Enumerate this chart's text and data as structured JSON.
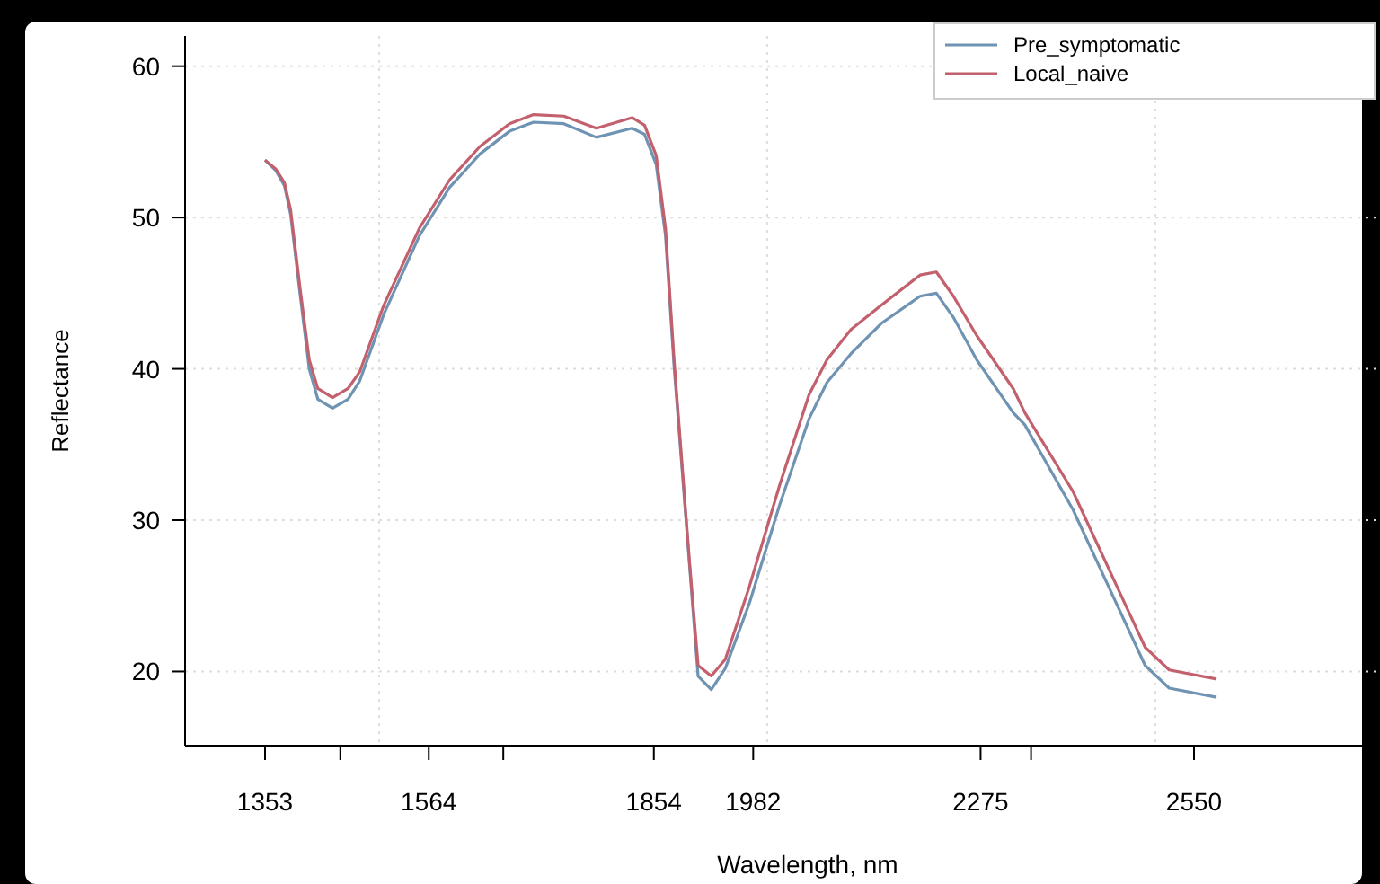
{
  "chart_data": {
    "type": "line",
    "xlabel": "Wavelength, nm",
    "ylabel": "Reflectance",
    "x": [
      1353,
      1367,
      1378,
      1386,
      1398,
      1410,
      1421,
      1440,
      1460,
      1475,
      1506,
      1552,
      1591,
      1630,
      1668,
      1699,
      1738,
      1780,
      1826,
      1842,
      1857,
      1869,
      1880,
      1900,
      1911,
      1928,
      1946,
      1977,
      2016,
      2054,
      2077,
      2108,
      2147,
      2197,
      2218,
      2240,
      2270,
      2317,
      2332,
      2394,
      2440,
      2487,
      2518,
      2579
    ],
    "series": [
      {
        "name": "Pre_symptomatic",
        "color": "#6f93b3",
        "values": [
          53.8,
          53.1,
          52.1,
          50.2,
          45.0,
          40.0,
          38.0,
          37.4,
          38.0,
          39.2,
          43.6,
          48.8,
          52.0,
          54.2,
          55.7,
          56.3,
          56.2,
          55.3,
          55.9,
          55.5,
          53.5,
          48.8,
          40.2,
          27.0,
          19.7,
          18.8,
          20.2,
          24.5,
          31.0,
          36.7,
          39.1,
          41.0,
          43.0,
          44.8,
          45.0,
          43.4,
          40.6,
          37.1,
          36.3,
          30.7,
          25.6,
          20.4,
          18.9,
          18.3
        ]
      },
      {
        "name": "Local_naive",
        "color": "#c2606e",
        "values": [
          53.8,
          53.2,
          52.3,
          50.5,
          45.4,
          40.6,
          38.7,
          38.1,
          38.7,
          39.8,
          44.2,
          49.3,
          52.5,
          54.7,
          56.2,
          56.8,
          56.7,
          55.9,
          56.6,
          56.1,
          54.1,
          49.3,
          40.6,
          27.2,
          20.4,
          19.7,
          20.8,
          25.6,
          32.3,
          38.3,
          40.6,
          42.6,
          44.2,
          46.2,
          46.4,
          44.8,
          42.2,
          38.7,
          37.1,
          31.9,
          26.8,
          21.6,
          20.1,
          19.5
        ]
      }
    ],
    "xlim": [
      1250,
      2785
    ],
    "ylim": [
      15.1,
      62
    ],
    "xticks": [
      1353,
      {
        "value": 1450,
        "label": null
      },
      1564,
      {
        "value": 1660,
        "label": null
      },
      1854,
      1982,
      2275,
      {
        "value": 2340,
        "label": null
      },
      2550
    ],
    "yticks": [
      20,
      30,
      40,
      50,
      60
    ],
    "grid": "y",
    "ref_lines": [
      {
        "axis": "x",
        "value": 1500,
        "label": null,
        "color": "#dddddd",
        "line_style": "dotted"
      },
      {
        "axis": "x",
        "value": 2000,
        "label": null,
        "color": "#dddddd",
        "line_style": "dotted"
      },
      {
        "axis": "x",
        "value": 2500,
        "label": null,
        "color": "#dddddd",
        "line_style": "dotted"
      }
    ],
    "legend": "top right",
    "line_style": "solid",
    "marker": "none"
  }
}
